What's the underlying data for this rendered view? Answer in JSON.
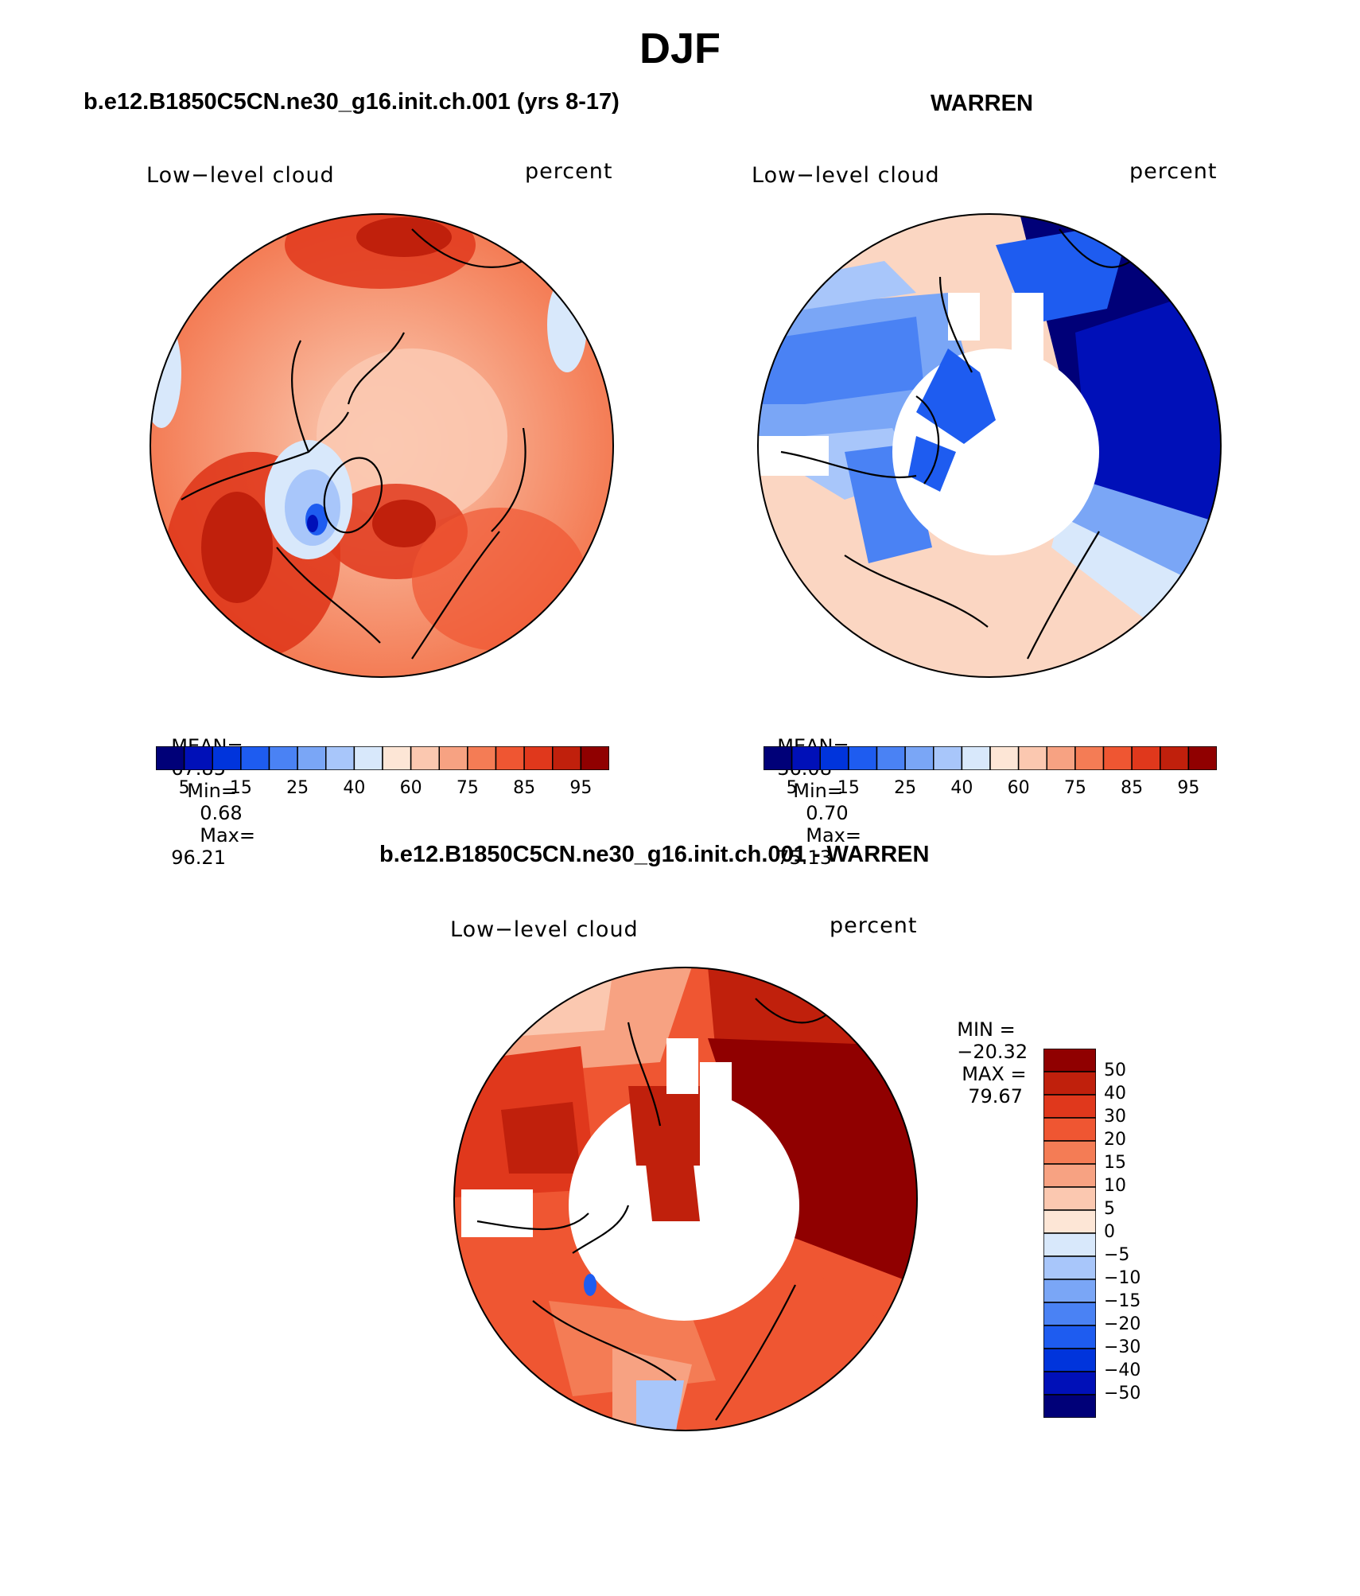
{
  "page": {
    "title": "DJF"
  },
  "panels": [
    {
      "title": "b.e12.B1850C5CN.ne30_g16.init.ch.001 (yrs 8-17)",
      "variable": "Low−level cloud",
      "units": "percent",
      "stats": {
        "mean_label": "MEAN=",
        "mean": "67.85",
        "min_label": "Min=",
        "min": "0.68",
        "max_label": "Max=",
        "max": "96.21"
      }
    },
    {
      "title": "WARREN",
      "variable": "Low−level cloud",
      "units": "percent",
      "stats": {
        "mean_label": "MEAN=",
        "mean": "36.08",
        "min_label": "Min=",
        "min": "0.70",
        "max_label": "Max=",
        "max": "75.13"
      }
    }
  ],
  "difference": {
    "title": "b.e12.B1850C5CN.ne30_g16.init.ch.001 - WARREN",
    "variable": "Low−level cloud",
    "units": "percent",
    "min_label": "MIN =",
    "min": "−20.32",
    "max_label": "MAX =",
    "max": "79.67"
  },
  "colorbar_abs": {
    "colors": [
      "#000078",
      "#0010b8",
      "#0034dc",
      "#1e5cf0",
      "#4a82f4",
      "#7aa6f6",
      "#a8c6fa",
      "#d8e8fb",
      "#fde6d6",
      "#fbc8b0",
      "#f7a282",
      "#f47c55",
      "#ef5632",
      "#e0381c",
      "#c0200c",
      "#900000"
    ],
    "tick_labels": [
      "5",
      "15",
      "25",
      "40",
      "60",
      "75",
      "85",
      "95"
    ]
  },
  "colorbar_diff": {
    "colors": [
      "#900000",
      "#c0200c",
      "#e0381c",
      "#ef5632",
      "#f47c55",
      "#f7a282",
      "#fbc8b0",
      "#fde6d6",
      "#d8e8fb",
      "#a8c6fa",
      "#7aa6f6",
      "#4a82f4",
      "#1e5cf0",
      "#0034dc",
      "#0010b8",
      "#000078"
    ],
    "tick_labels": [
      "50",
      "40",
      "30",
      "20",
      "15",
      "10",
      "5",
      "0",
      "−5",
      "−10",
      "−15",
      "−20",
      "−30",
      "−40",
      "−50"
    ]
  }
}
